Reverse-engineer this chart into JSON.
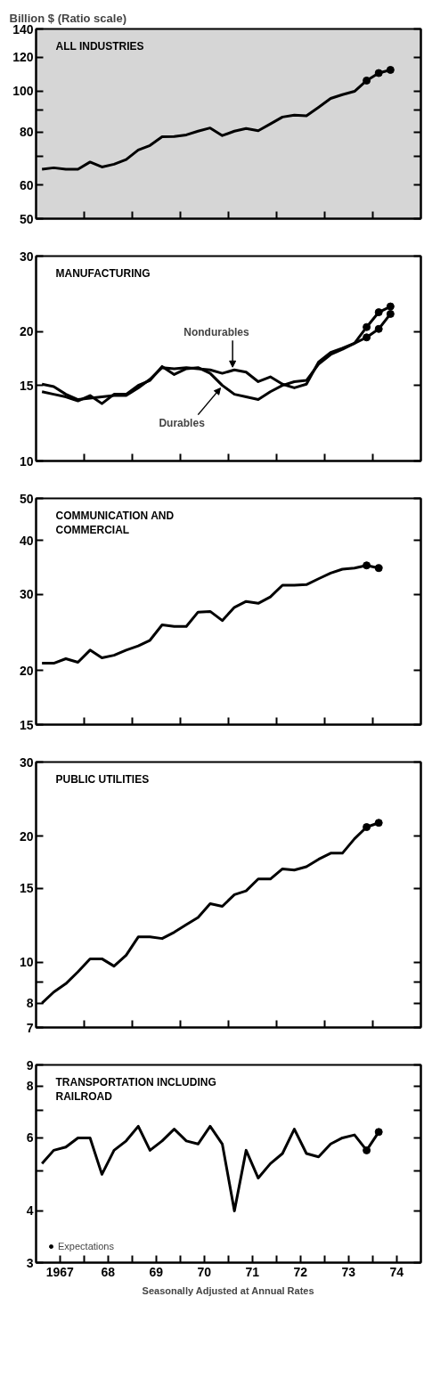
{
  "chart_data": [
    {
      "type": "line",
      "title": "ALL INDUSTRIES",
      "ylabel": "Billion $ (Ratio scale)",
      "log": true,
      "tick_labels": "y",
      "xlim": [
        "1967-01-01",
        "1975-01-01"
      ],
      "ylim": [
        50,
        140
      ],
      "yticks": [
        50,
        60,
        {
          "value": 70,
          "label": null
        },
        80,
        {
          "value": 90,
          "label": null
        },
        100,
        120,
        140
      ],
      "xticks": [
        "1968-01-01",
        "1969-01-01",
        "1970-01-01",
        "1971-01-01",
        "1972-01-01",
        "1973-01-01",
        "1974-01-01"
      ],
      "x": [
        "1967-02-15",
        "1967-05-15",
        "1967-08-15",
        "1967-11-15",
        "1968-02-15",
        "1968-05-15",
        "1968-08-15",
        "1968-11-15",
        "1969-02-15",
        "1969-05-15",
        "1969-08-15",
        "1969-11-15",
        "1970-02-15",
        "1970-05-15",
        "1970-08-15",
        "1970-11-15",
        "1971-02-15",
        "1971-05-15",
        "1971-08-15",
        "1971-11-15",
        "1972-02-15",
        "1972-05-15",
        "1972-08-15",
        "1972-11-15",
        "1973-02-15",
        "1973-05-15",
        "1973-08-15",
        "1973-11-15",
        "1974-02-15",
        "1974-05-15"
      ],
      "series": [
        {
          "color": "#000000",
          "values": [
            65.4,
            65.9,
            65.4,
            65.4,
            68.0,
            66.2,
            67.2,
            68.9,
            72.6,
            74.4,
            78.0,
            78.1,
            78.8,
            80.4,
            81.8,
            78.5,
            80.4,
            81.6,
            80.6,
            83.6,
            86.8,
            87.7,
            87.4,
            91.5,
            96.0,
            98.0,
            99.8,
            105.8,
            110.2,
            112.1
          ]
        },
        {
          "type": "scatter",
          "marker": "circle",
          "color": "#000000",
          "x": [
            "1973-11-15",
            "1974-02-15",
            "1974-05-15"
          ],
          "values": [
            105.8,
            110.2,
            112.1
          ]
        }
      ]
    },
    {
      "type": "line",
      "title": "MANUFACTURING",
      "log": true,
      "tick_labels": "y",
      "xlim": [
        "1967-01-01",
        "1975-01-01"
      ],
      "ylim": [
        10,
        30
      ],
      "yticks": [
        10,
        15,
        20,
        30
      ],
      "xticks": [
        "1968-01-01",
        "1969-01-01",
        "1970-01-01",
        "1971-01-01",
        "1972-01-01",
        "1973-01-01",
        "1974-01-01"
      ],
      "x": [
        "1967-02-15",
        "1967-05-15",
        "1967-08-15",
        "1967-11-15",
        "1968-02-15",
        "1968-05-15",
        "1968-08-15",
        "1968-11-15",
        "1969-02-15",
        "1969-05-15",
        "1969-08-15",
        "1969-11-15",
        "1970-02-15",
        "1970-05-15",
        "1970-08-15",
        "1970-11-15",
        "1971-02-15",
        "1971-05-15",
        "1971-08-15",
        "1971-11-15",
        "1972-02-15",
        "1972-05-15",
        "1972-08-15",
        "1972-11-15",
        "1973-02-15",
        "1973-05-15",
        "1973-08-15",
        "1973-11-15",
        "1974-02-15",
        "1974-05-15"
      ],
      "annotations": [
        {
          "text": "Nondurables",
          "x": "1971-02-15",
          "y": 16.3
        },
        {
          "text": "Durables",
          "x": "1970-11-15",
          "y": 15.0
        }
      ],
      "series": [
        {
          "color": "#000000",
          "values": [
            15.1,
            14.9,
            14.3,
            13.9,
            14.0,
            14.1,
            14.2,
            14.2,
            14.8,
            15.5,
            16.5,
            16.4,
            16.5,
            16.4,
            16.3,
            16.0,
            16.3,
            16.1,
            15.3,
            15.7,
            15.1,
            14.8,
            15.1,
            17.0,
            17.9,
            18.3,
            18.8,
            19.4,
            20.3,
            22.0
          ]
        },
        {
          "color": "#000000",
          "values": [
            14.5,
            14.3,
            14.1,
            13.8,
            14.2,
            13.6,
            14.3,
            14.3,
            15.0,
            15.4,
            16.6,
            15.9,
            16.4,
            16.5,
            16.0,
            15.0,
            14.3,
            14.1,
            13.9,
            14.5,
            15.0,
            15.3,
            15.4,
            16.8,
            17.7,
            18.2,
            18.8,
            20.5,
            22.2,
            22.9
          ]
        },
        {
          "type": "scatter",
          "marker": "circle",
          "color": "#000000",
          "x": [
            "1973-11-15",
            "1974-02-15",
            "1974-05-15",
            "1973-11-15",
            "1974-02-15",
            "1974-05-15"
          ],
          "values": [
            19.4,
            20.3,
            22.0,
            20.5,
            22.2,
            22.9
          ]
        }
      ]
    },
    {
      "type": "line",
      "title": "COMMUNICATION AND\nCOMMERCIAL",
      "log": true,
      "tick_labels": "y",
      "xlim": [
        "1967-01-01",
        "1975-01-01"
      ],
      "ylim": [
        15,
        50
      ],
      "yticks": [
        15,
        20,
        30,
        40,
        50
      ],
      "xticks": [
        "1968-01-01",
        "1969-01-01",
        "1970-01-01",
        "1971-01-01",
        "1972-01-01",
        "1973-01-01",
        "1974-01-01"
      ],
      "x": [
        "1967-02-15",
        "1967-05-15",
        "1967-08-15",
        "1967-11-15",
        "1968-02-15",
        "1968-05-15",
        "1968-08-15",
        "1968-11-15",
        "1969-02-15",
        "1969-05-15",
        "1969-08-15",
        "1969-11-15",
        "1970-02-15",
        "1970-05-15",
        "1970-08-15",
        "1970-11-15",
        "1971-02-15",
        "1971-05-15",
        "1971-08-15",
        "1971-11-15",
        "1972-02-15",
        "1972-05-15",
        "1972-08-15",
        "1972-11-15",
        "1973-02-15",
        "1973-05-15",
        "1973-08-15",
        "1973-11-15",
        "1974-02-15"
      ],
      "series": [
        {
          "color": "#000000",
          "values": [
            20.8,
            20.8,
            21.3,
            20.9,
            22.3,
            21.4,
            21.7,
            22.3,
            22.8,
            23.5,
            25.5,
            25.3,
            25.3,
            27.3,
            27.4,
            26.1,
            28.0,
            28.9,
            28.6,
            29.6,
            31.5,
            31.5,
            31.6,
            32.6,
            33.6,
            34.3,
            34.5,
            35.0,
            34.5
          ]
        },
        {
          "type": "scatter",
          "marker": "circle",
          "color": "#000000",
          "x": [
            "1973-11-15",
            "1974-02-15"
          ],
          "values": [
            35.0,
            34.5
          ]
        }
      ]
    },
    {
      "type": "line",
      "title": "PUBLIC UTILITIES",
      "log": true,
      "tick_labels": "y",
      "xlim": [
        "1967-01-01",
        "1975-01-01"
      ],
      "ylim": [
        7,
        30
      ],
      "yticks": [
        7,
        8,
        {
          "value": 9,
          "label": null
        },
        10,
        15,
        20,
        30
      ],
      "xticks": [
        "1968-01-01",
        "1969-01-01",
        "1970-01-01",
        "1971-01-01",
        "1972-01-01",
        "1973-01-01",
        "1974-01-01"
      ],
      "x": [
        "1967-02-15",
        "1967-05-15",
        "1967-08-15",
        "1967-11-15",
        "1968-02-15",
        "1968-05-15",
        "1968-08-15",
        "1968-11-15",
        "1969-02-15",
        "1969-05-15",
        "1969-08-15",
        "1969-11-15",
        "1970-02-15",
        "1970-05-15",
        "1970-08-15",
        "1970-11-15",
        "1971-02-15",
        "1971-05-15",
        "1971-08-15",
        "1971-11-15",
        "1972-02-15",
        "1972-05-15",
        "1972-08-15",
        "1972-11-15",
        "1973-02-15",
        "1973-05-15",
        "1973-08-15",
        "1973-11-15",
        "1974-02-15"
      ],
      "series": [
        {
          "color": "#000000",
          "values": [
            8.0,
            8.5,
            8.9,
            9.5,
            10.2,
            10.2,
            9.8,
            10.4,
            11.5,
            11.5,
            11.4,
            11.8,
            12.3,
            12.8,
            13.8,
            13.6,
            14.5,
            14.8,
            15.8,
            15.8,
            16.7,
            16.6,
            16.9,
            17.6,
            18.2,
            18.2,
            19.7,
            21.0,
            21.5
          ]
        },
        {
          "type": "scatter",
          "marker": "circle",
          "color": "#000000",
          "x": [
            "1973-11-15",
            "1974-02-15"
          ],
          "values": [
            21.0,
            21.5
          ]
        }
      ]
    },
    {
      "type": "line",
      "title": "TRANSPORTATION INCLUDING\nRAILROAD",
      "log": true,
      "legend": "bottom left",
      "xlim": [
        "1967-01-01",
        "1975-01-01"
      ],
      "ylim": [
        3,
        9
      ],
      "yticks": [
        3,
        4,
        {
          "value": 5,
          "label": null
        },
        6,
        {
          "value": 7,
          "label": null
        },
        8,
        9
      ],
      "xticks": [
        {
          "value": "1967-07-01",
          "label": "1967"
        },
        {
          "value": "1968-01-01",
          "label": null
        },
        {
          "value": "1968-07-01",
          "label": "68"
        },
        {
          "value": "1969-01-01",
          "label": null
        },
        {
          "value": "1969-07-01",
          "label": "69"
        },
        {
          "value": "1970-01-01",
          "label": null
        },
        {
          "value": "1970-07-01",
          "label": "70"
        },
        {
          "value": "1971-01-01",
          "label": null
        },
        {
          "value": "1971-07-01",
          "label": "71"
        },
        {
          "value": "1972-01-01",
          "label": null
        },
        {
          "value": "1972-07-01",
          "label": "72"
        },
        {
          "value": "1973-01-01",
          "label": null
        },
        {
          "value": "1973-07-01",
          "label": "73"
        },
        {
          "value": "1974-01-01",
          "label": null
        },
        {
          "value": "1974-07-01",
          "label": "74"
        }
      ],
      "x": [
        "1967-02-15",
        "1967-05-15",
        "1967-08-15",
        "1967-11-15",
        "1968-02-15",
        "1968-05-15",
        "1968-08-15",
        "1968-11-15",
        "1969-02-15",
        "1969-05-15",
        "1969-08-15",
        "1969-11-15",
        "1970-02-15",
        "1970-05-15",
        "1970-08-15",
        "1970-11-15",
        "1971-02-15",
        "1971-05-15",
        "1971-08-15",
        "1971-11-15",
        "1972-02-15",
        "1972-05-15",
        "1972-08-15",
        "1972-11-15",
        "1973-02-15",
        "1973-05-15",
        "1973-08-15",
        "1973-11-15",
        "1974-02-15"
      ],
      "annotations": [
        "Seasonally Adjusted at Annual Rates"
      ],
      "series": [
        {
          "color": "#000000",
          "values": [
            5.2,
            5.6,
            5.7,
            6.0,
            6.0,
            4.9,
            5.6,
            5.9,
            6.4,
            5.6,
            5.9,
            6.3,
            5.9,
            5.8,
            6.4,
            5.8,
            4.0,
            5.6,
            4.8,
            5.2,
            5.5,
            6.3,
            5.5,
            5.4,
            5.8,
            6.0,
            6.1,
            5.6,
            6.2
          ]
        },
        {
          "type": "scatter",
          "name": "Expectations",
          "marker": "circle",
          "color": "#000000",
          "x": [
            "1973-11-15",
            "1974-02-15"
          ],
          "values": [
            5.6,
            6.2
          ]
        }
      ]
    }
  ]
}
